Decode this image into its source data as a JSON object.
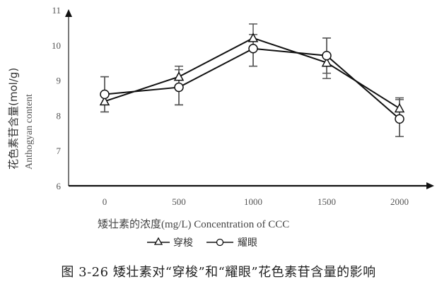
{
  "chart_data": {
    "type": "line",
    "title": "",
    "xlabel": "矮壮素的浓度(mg/L)  Concentration of CCC",
    "ylabel_cn": "花色素苷含量(mol/g)",
    "ylabel_en": "Anthogyan content",
    "ylim": [
      6,
      11
    ],
    "yticks": [
      6,
      7,
      8,
      9,
      10,
      11
    ],
    "categories": [
      "0",
      "500",
      "1000",
      "1500",
      "2000"
    ],
    "grid": false,
    "legend_position": "bottom",
    "series": [
      {
        "name": "穿梭",
        "marker": "triangle",
        "values": [
          8.4,
          9.1,
          10.2,
          9.5,
          8.2
        ],
        "error_upper": [
          9.1,
          9.4,
          10.6,
          10.2,
          8.5
        ],
        "error_lower": [
          8.1,
          8.3,
          9.4,
          9.05,
          7.4
        ]
      },
      {
        "name": "耀眼",
        "marker": "circle",
        "values": [
          8.6,
          8.8,
          9.9,
          9.7,
          7.9
        ],
        "error_upper": [
          9.1,
          9.3,
          10.3,
          10.2,
          8.45
        ],
        "error_lower": [
          8.1,
          8.3,
          9.4,
          9.2,
          7.4
        ]
      }
    ]
  },
  "labels": {
    "xlabel": "矮壮素的浓度(mg/L)  Concentration of CCC",
    "ylabel_cn": "花色素苷含量(mol/g)",
    "ylabel_en": "Anthogyan content",
    "legend_series1": "穿梭",
    "legend_series2": "耀眼",
    "caption": "图 3-26  矮壮素对“穿梭”和“耀眼”花色素苷含量的影响"
  },
  "colors": {
    "line": "#111111",
    "axis": "#111111",
    "error_bar": "#555555"
  }
}
